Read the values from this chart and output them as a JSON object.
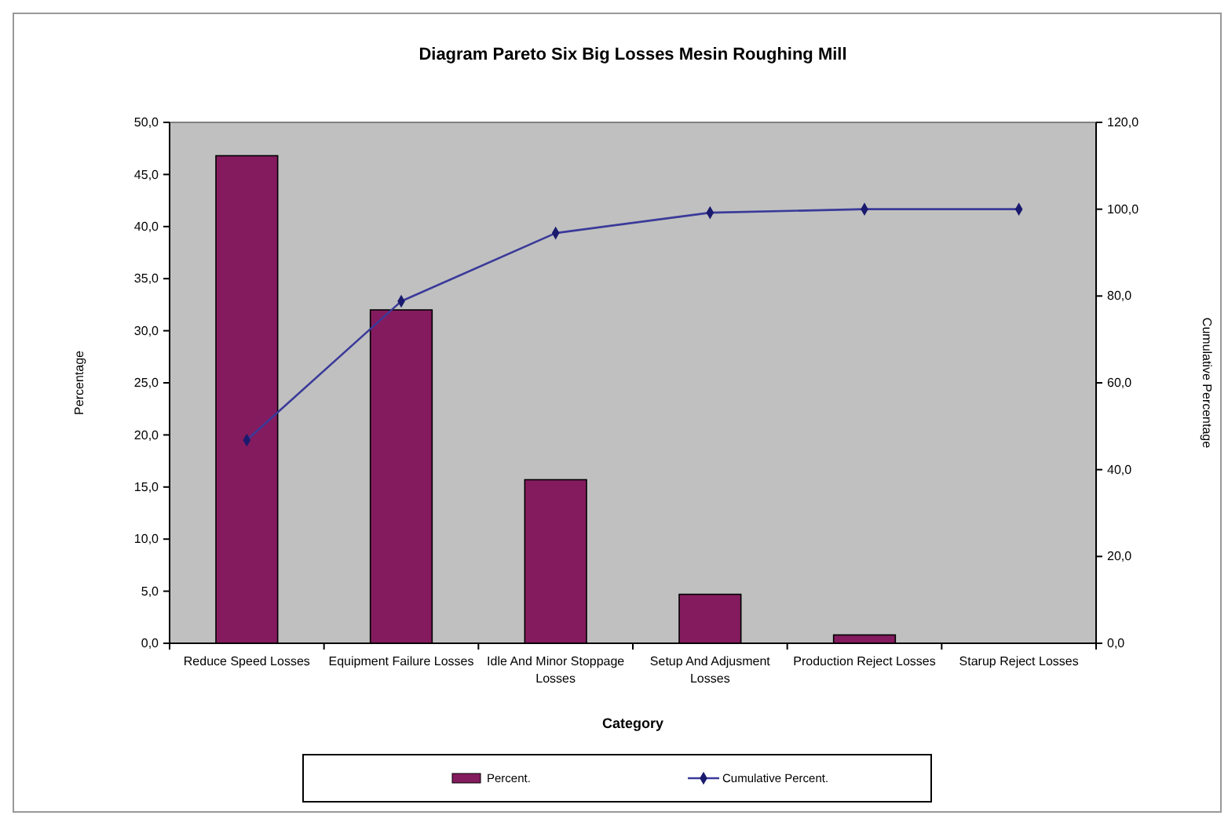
{
  "chart_data": {
    "type": "bar",
    "title": "Diagram Pareto Six Big Losses Mesin Roughing  Mill",
    "xlabel": "Category",
    "ylabel": "Percentage",
    "y2label": "Cumulative Percentage",
    "categories": [
      "Reduce Speed Losses",
      "Equipment Failure Losses",
      "Idle And Minor Stoppage Losses",
      "Setup And Adjusment Losses",
      "Production Reject Losses",
      "Starup Reject Losses"
    ],
    "series": [
      {
        "name": "Percent.",
        "color": "#841b5e",
        "values": [
          46.8,
          32.0,
          15.7,
          4.7,
          0.8,
          0
        ]
      },
      {
        "name": "Cumulative Percent.",
        "type": "line",
        "axis": "y2",
        "color": "#3a3a9a",
        "marker": "diamond",
        "values": [
          46.8,
          78.8,
          94.5,
          99.2,
          100,
          100
        ]
      }
    ],
    "ylim": [
      0,
      50
    ],
    "yticks": [
      {
        "value": 0,
        "label": "0,0"
      },
      {
        "value": 5,
        "label": "5,0"
      },
      {
        "value": 10,
        "label": "10,0"
      },
      {
        "value": 15,
        "label": "15,0"
      },
      {
        "value": 20,
        "label": "20,0"
      },
      {
        "value": 25,
        "label": "25,0"
      },
      {
        "value": 30,
        "label": "30,0"
      },
      {
        "value": 35,
        "label": "35,0"
      },
      {
        "value": 40,
        "label": "40,0"
      },
      {
        "value": 45,
        "label": "45,0"
      },
      {
        "value": 50,
        "label": "50,0"
      }
    ],
    "y2lim": [
      0,
      120
    ],
    "y2ticks": [
      {
        "value": 0,
        "label": "0,0"
      },
      {
        "value": 20,
        "label": "20,0"
      },
      {
        "value": 40,
        "label": "40,0"
      },
      {
        "value": 60,
        "label": "60,0"
      },
      {
        "value": 80,
        "label": "80,0"
      },
      {
        "value": 100,
        "label": "100,0"
      },
      {
        "value": 120,
        "label": "120,0"
      }
    ],
    "grid": false,
    "legend": "bottom"
  }
}
